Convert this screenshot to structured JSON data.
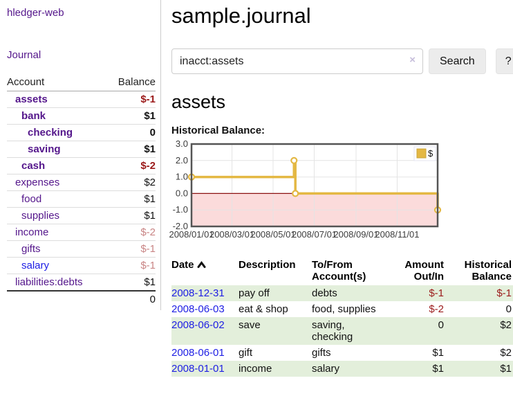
{
  "app": {
    "title": "hledger-web",
    "nav_journal": "Journal"
  },
  "sidebar": {
    "accounts_table": {
      "col_account": "Account",
      "col_balance": "Balance",
      "rows": [
        {
          "name": "assets",
          "balance": "$-1"
        },
        {
          "name": "bank",
          "balance": "$1"
        },
        {
          "name": "checking",
          "balance": "0"
        },
        {
          "name": "saving",
          "balance": "$1"
        },
        {
          "name": "cash",
          "balance": "$-2"
        },
        {
          "name": "expenses",
          "balance": "$2"
        },
        {
          "name": "food",
          "balance": "$1"
        },
        {
          "name": "supplies",
          "balance": "$1"
        },
        {
          "name": "income",
          "balance": "$-2"
        },
        {
          "name": "gifts",
          "balance": "$-1"
        },
        {
          "name": "salary",
          "balance": "$-1"
        },
        {
          "name": "liabilities:debts",
          "balance": "$1"
        }
      ],
      "total": "0"
    }
  },
  "main": {
    "title": "sample.journal",
    "search": {
      "value": "inacct:assets",
      "clear_icon": "×",
      "button_label": "Search",
      "help_label": "?"
    },
    "account_heading": "assets",
    "chart_label": "Historical Balance:",
    "register": {
      "headers": {
        "date": "Date",
        "description": "Description",
        "tofrom_line1": "To/From",
        "tofrom_line2": "Account(s)",
        "amount_line1": "Amount",
        "amount_line2": "Out/In",
        "balance_line1": "Historical",
        "balance_line2": "Balance"
      },
      "rows": [
        {
          "date": "2008-12-31",
          "description": "pay off",
          "accounts": "debts",
          "amount": "$-1",
          "balance": "$-1"
        },
        {
          "date": "2008-06-03",
          "description": "eat & shop",
          "accounts": "food, supplies",
          "amount": "$-2",
          "balance": "0"
        },
        {
          "date": "2008-06-02",
          "description": "save",
          "accounts": "saving, checking",
          "amount": "0",
          "balance": "$2"
        },
        {
          "date": "2008-06-01",
          "description": "gift",
          "accounts": "gifts",
          "amount": "$1",
          "balance": "$2"
        },
        {
          "date": "2008-01-01",
          "description": "income",
          "accounts": "salary",
          "amount": "$1",
          "balance": "$1"
        }
      ]
    }
  },
  "chart_data": {
    "type": "line",
    "title": "Historical Balance",
    "step": true,
    "series": [
      {
        "name": "$",
        "points": [
          [
            "2008-01-01",
            1
          ],
          [
            "2008-06-01",
            2
          ],
          [
            "2008-06-03",
            0
          ],
          [
            "2008-12-31",
            -1
          ]
        ]
      }
    ],
    "x_range": [
      "2008-01-01",
      "2008-12-31"
    ],
    "ylim": [
      -2,
      3
    ],
    "y_ticks": [
      3.0,
      2.0,
      1.0,
      0.0,
      -1.0,
      -2.0
    ],
    "x_ticks": [
      "2008/01/01",
      "2008/03/01",
      "2008/05/01",
      "2008/07/01",
      "2008/09/01",
      "2008/11/01"
    ],
    "legend_position": "top-right",
    "grid": true,
    "line_color": "#e4b843",
    "marker_fill": "#ffffff",
    "zero_line_color": "#8b1010",
    "negative_fill": "#fbdbdb",
    "border_color": "#545454",
    "grid_color": "#e4e4e4"
  }
}
